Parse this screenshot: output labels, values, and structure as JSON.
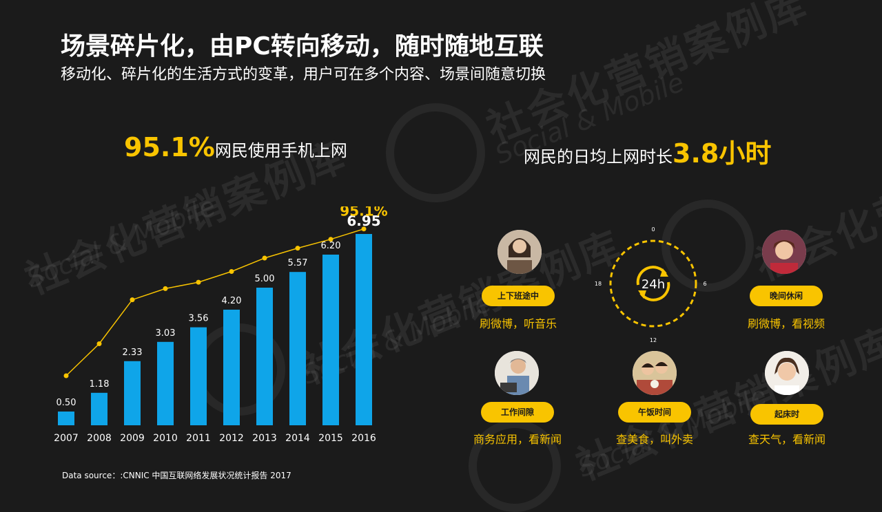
{
  "title": "场景碎片化，由PC转向移动，随时随地互联",
  "subtitle": "移动化、碎片化的生活方式的变革，用户可在多个内容、场景间随意切换",
  "stat_left": {
    "value": "95.1%",
    "label": "网民使用手机上网"
  },
  "stat_right": {
    "label": "网民的日均上网时长",
    "value": "3.8小时"
  },
  "watermark": {
    "cn": "社会化营销案例库",
    "en": "Social & Mobile"
  },
  "chart_data": {
    "type": "bar",
    "categories": [
      "2007",
      "2008",
      "2009",
      "2010",
      "2011",
      "2012",
      "2013",
      "2014",
      "2015",
      "2016"
    ],
    "series": [
      {
        "type": "bar",
        "values": [
          0.5,
          1.18,
          2.33,
          3.03,
          3.56,
          4.2,
          5.0,
          5.57,
          6.2,
          6.95
        ],
        "labels": [
          "0.50",
          "1.18",
          "2.33",
          "3.03",
          "3.56",
          "4.20",
          "5.00",
          "5.57",
          "6.20",
          "6.95"
        ],
        "color": "#0fa5e9"
      },
      {
        "type": "line",
        "values": [
          24.0,
          39.5,
          60.8,
          66.2,
          69.3,
          74.5,
          81.0,
          85.8,
          90.1,
          95.1
        ],
        "end_label": "95.1%",
        "color": "#f9c400"
      }
    ],
    "bar_ylim": [
      0,
      7.5
    ],
    "line_ylim": [
      0,
      100
    ],
    "xlabel": "",
    "ylabel": "",
    "grid": false,
    "legend": "none"
  },
  "clock": {
    "center_label": "24h",
    "ticks": [
      "0",
      "6",
      "12",
      "18"
    ],
    "color": "#f9c400"
  },
  "scenarios": [
    {
      "pill": "上下班途中",
      "activity": "刷微博，听音乐",
      "icon": "woman-phone-photo"
    },
    {
      "pill": "晚间休闲",
      "activity": "刷微博，看视频",
      "icon": "woman-watching-photo"
    },
    {
      "pill": "工作间隙",
      "activity": "商务应用，看新闻",
      "icon": "man-laptop-photo"
    },
    {
      "pill": "午饭时间",
      "activity": "查美食，叫外卖",
      "icon": "friends-lunch-photo"
    },
    {
      "pill": "起床时",
      "activity": "查天气，看新闻",
      "icon": "woman-waking-photo"
    }
  ],
  "source": "Data source：:CNNIC 中国互联网络发展状况统计报告 2017"
}
